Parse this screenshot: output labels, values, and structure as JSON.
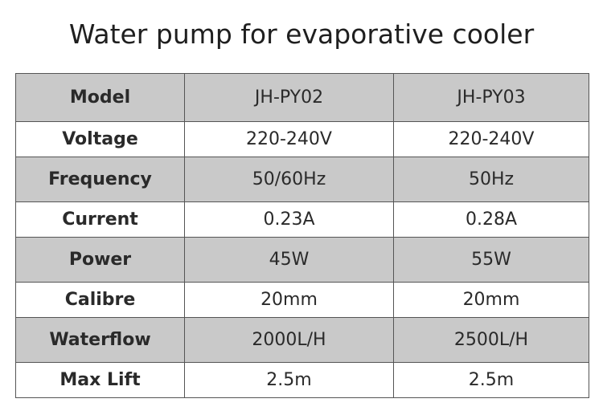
{
  "title": "Water pump for evaporative cooler",
  "table": {
    "header": {
      "label": "Model",
      "models": [
        "JH-PY02",
        "JH-PY03"
      ]
    },
    "rows": [
      {
        "label": "Voltage",
        "values": [
          "220-240V",
          "220-240V"
        ]
      },
      {
        "label": "Frequency",
        "values": [
          "50/60Hz",
          "50Hz"
        ]
      },
      {
        "label": "Current",
        "values": [
          "0.23A",
          "0.28A"
        ]
      },
      {
        "label": "Power",
        "values": [
          "45W",
          "55W"
        ]
      },
      {
        "label": "Calibre",
        "values": [
          "20mm",
          "20mm"
        ]
      },
      {
        "label": "Waterflow",
        "values": [
          "2000L/H",
          "2500L/H"
        ]
      },
      {
        "label": "Max Lift",
        "values": [
          "2.5m",
          "2.5m"
        ]
      }
    ]
  },
  "colors": {
    "shaded_row": "#c9c9c9",
    "plain_row": "#ffffff",
    "border": "#555555"
  }
}
